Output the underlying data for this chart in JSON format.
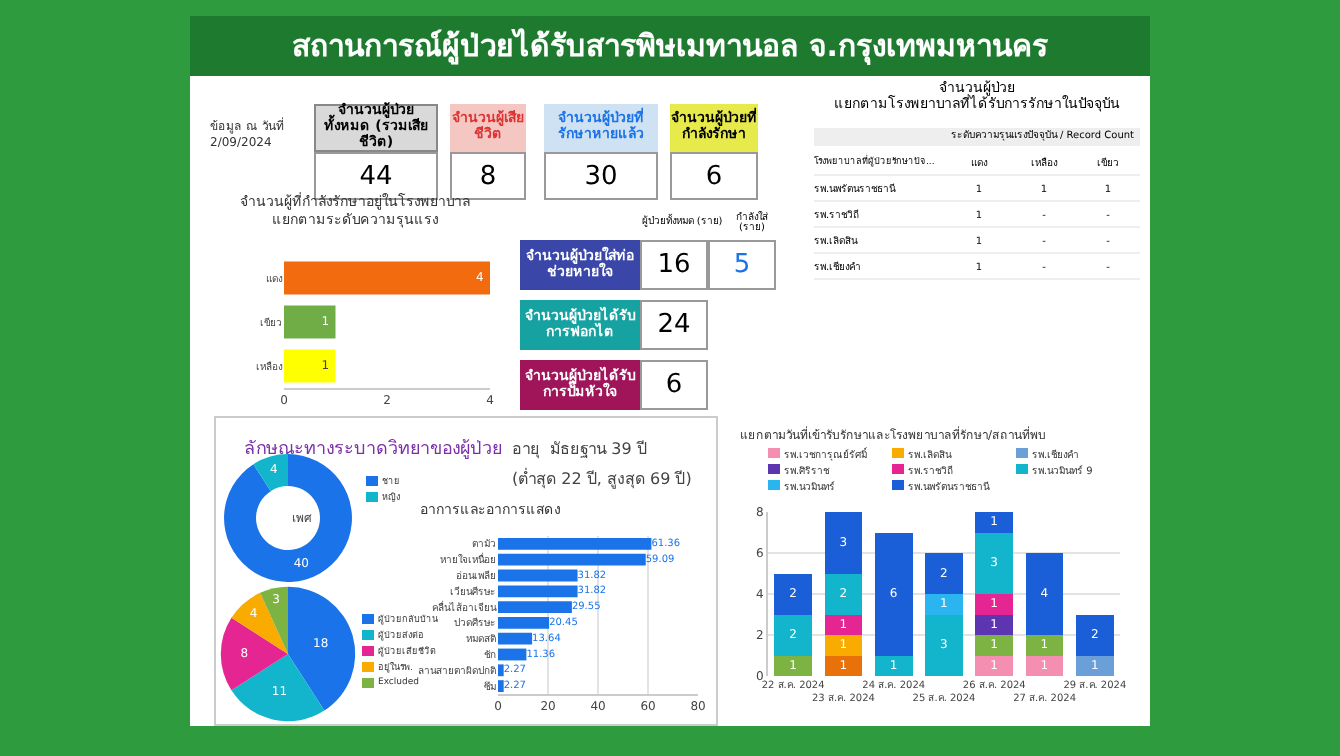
{
  "chart_data": [
    {
      "type": "other",
      "title": "สถานการณ์ผู้ป่วยได้รับสารพิษเมทานอล จ.กรุงเทพมหานคร",
      "annotations": [
        "ข้อมูล ณ วันที่ 2/09/2024",
        "จำนวนผู้ป่วยทั้งหมด (รวมเสียชีวิต)",
        "44",
        "จำนวนผู้เสียชีวิต",
        "8",
        "จำนวนผู้ป่วยที่รักษาหายแล้ว",
        "30",
        "จำนวนผู้ป่วยที่กำลังรักษา",
        "6",
        "ผู้ป่วยทั้งหมด (ราย)",
        "กำลังใส่ (ราย)",
        "จำนวนผู้ป่วยใส่ท่อช่วยหายใจ",
        "16",
        "5",
        "จำนวนผู้ป่วยได้รับการฟอกไต",
        "24",
        "จำนวนผู้ป่วยได้รับการปั๊มหัวใจ",
        "6"
      ]
    },
    {
      "type": "other",
      "title": "จำนวนผู้ป่วย แยกตามโรงพยาบาลที่ได้รับการรักษาในปัจจุบัน",
      "subtitle": "ระดับความรุนแรงปัจจุบัน / Record Count",
      "annotations": [
        "โรงพยาบาลที่ผู้ป่วยรักษาปัจ...",
        "แดง",
        "เหลือง",
        "เขียว",
        "รพ.นพรัตนราชธานี",
        "1",
        "1",
        "1",
        "รพ.ราชวิถี",
        "1",
        "-",
        "-",
        "รพ.เลิดสิน",
        "1",
        "-",
        "-",
        "รพ.เชียงคำ",
        "1",
        "-",
        "-"
      ]
    },
    {
      "type": "bar",
      "orientation": "horizontal",
      "title": "จำนวนผู้ที่กำลังรักษาอยู่ในโรงพยาบาล แยกตามระดับความรุนแรง",
      "categories": [
        "แดง",
        "เขียว",
        "เหลือง"
      ],
      "values": [
        4,
        1,
        1
      ],
      "colors": [
        "#f26b0f",
        "#70ad47",
        "#ffff00"
      ],
      "xlim": [
        0,
        4
      ],
      "xticks": [
        0,
        2,
        4
      ],
      "data_labels": true
    },
    {
      "type": "donut",
      "title": "ลักษณะทางระบาดวิทยาของผู้ป่วย",
      "annotations": [
        "เพศ"
      ],
      "categories": [
        "ชาย",
        "หญิง"
      ],
      "values": [
        40,
        4
      ],
      "colors": [
        "#1a73e8",
        "#12b5cb"
      ],
      "data_labels": true,
      "legend": "right"
    },
    {
      "type": "pie",
      "categories": [
        "ผู้ป่วยกลับบ้าน",
        "ผู้ป่วยส่งต่อ",
        "ผู้ป่วยเสียชีวิต",
        "อยู่ในรพ.",
        "Excluded"
      ],
      "values": [
        18,
        11,
        8,
        4,
        3
      ],
      "colors": [
        "#1a73e8",
        "#12b5cb",
        "#e52592",
        "#f9ab00",
        "#7cb342"
      ],
      "data_labels": true,
      "legend": "right"
    },
    {
      "type": "bar",
      "orientation": "horizontal",
      "title": "อาการและอาการแสดง",
      "annotations": [
        "อายุ  มัธยฐาน 39 ปี",
        "(ต่ำสุด 22 ปี, สูงสุด 69 ปี)"
      ],
      "categories": [
        "ตามัว",
        "หายใจเหนื่อย",
        "อ่อนเพลีย",
        "เวียนศีรษะ",
        "คลื่นไส้อาเจียน",
        "ปวดศีรษะ",
        "หมดสติ",
        "ชัก",
        "ลานสายตาผิดปกติ",
        "ซึม"
      ],
      "values": [
        61.36,
        59.09,
        31.82,
        31.82,
        29.55,
        20.45,
        13.64,
        11.36,
        2.27,
        2.27
      ],
      "colors": [
        "#1a73e8",
        "#1a73e8",
        "#1a73e8",
        "#1a73e8",
        "#1a73e8",
        "#1a73e8",
        "#1a73e8",
        "#1a73e8",
        "#1a73e8",
        "#1a73e8"
      ],
      "xlim": [
        0,
        80
      ],
      "xticks": [
        0,
        20,
        40,
        60,
        80
      ],
      "data_labels": true,
      "grid": "x"
    },
    {
      "type": "bar",
      "stacked": true,
      "title": "แยกตามวันที่เข้ารับรักษาและโรงพยาบาลที่รักษา/สถานที่พบ",
      "categories": [
        "22 ส.ค. 2024",
        "23 ส.ค. 2024",
        "24 ส.ค. 2024",
        "25 ส.ค. 2024",
        "26 ส.ค. 2024",
        "27 ส.ค. 2024",
        "29 ส.ค. 2024"
      ],
      "ylim": [
        0,
        8
      ],
      "yticks": [
        0,
        2,
        4,
        6,
        8
      ],
      "data_labels": true,
      "legend": "top",
      "grid": "y",
      "series": [
        {
          "color": "#e8710a",
          "values": [
            null,
            1,
            null,
            null,
            null,
            null,
            null
          ]
        },
        {
          "name": "รพ.เวชการุณย์รัศมิ์",
          "color": "#f48fb1",
          "values": [
            null,
            null,
            null,
            null,
            1,
            1,
            null
          ]
        },
        {
          "name": "รพ.เลิดสิน",
          "color": "#f9ab00",
          "values": [
            null,
            1,
            null,
            null,
            null,
            null,
            null
          ]
        },
        {
          "name": "รพ.เชียงคำ",
          "color": "#6a9fd8",
          "values": [
            null,
            null,
            null,
            null,
            null,
            null,
            1
          ]
        },
        {
          "color": "#7cb342",
          "values": [
            1,
            null,
            null,
            null,
            1,
            1,
            null
          ]
        },
        {
          "name": "รพ.ศิริราช",
          "color": "#5e35b1",
          "values": [
            null,
            null,
            null,
            null,
            1,
            null,
            null
          ]
        },
        {
          "name": "รพ.ราชวิถี",
          "color": "#e52592",
          "values": [
            null,
            1,
            null,
            null,
            1,
            null,
            null
          ]
        },
        {
          "name": "รพ.นวมินทร์ 9",
          "color": "#12b5cb",
          "values": [
            2,
            2,
            1,
            3,
            3,
            null,
            null
          ]
        },
        {
          "name": "รพ.นวมินทร์",
          "color": "#2bb5f0",
          "values": [
            null,
            null,
            null,
            1,
            null,
            null,
            null
          ]
        },
        {
          "name": "รพ.นพรัตนราชธานี",
          "color": "#1a5fd8",
          "values": [
            2,
            3,
            6,
            2,
            1,
            4,
            2
          ]
        }
      ]
    }
  ]
}
